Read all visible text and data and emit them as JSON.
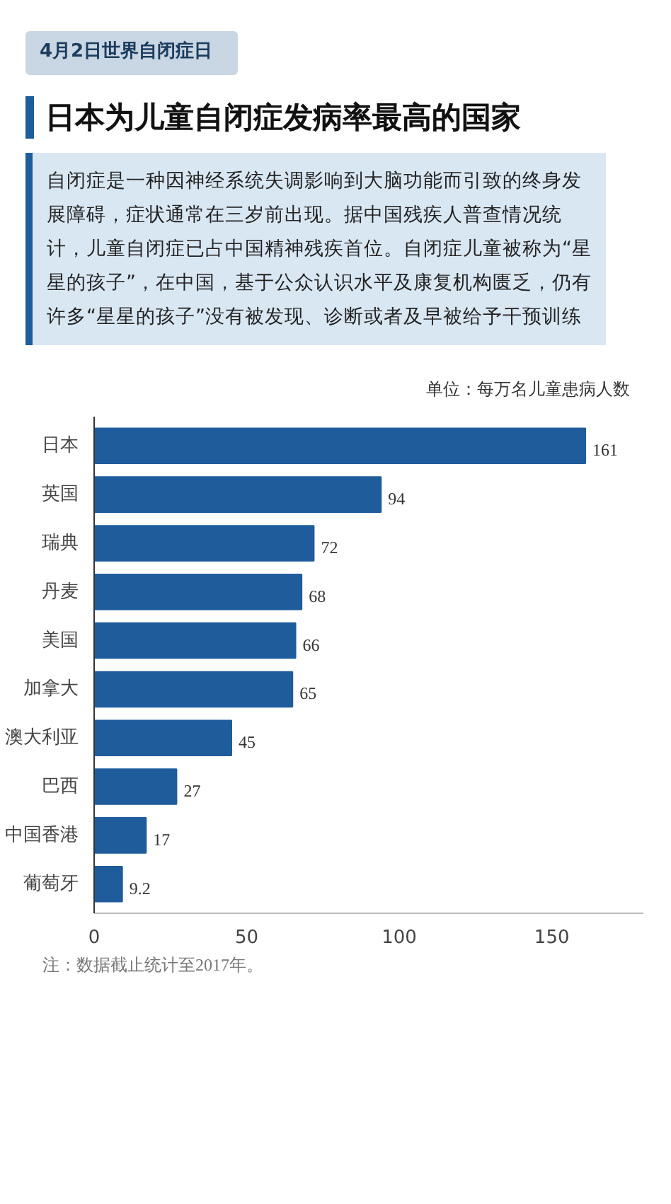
{
  "chart_data": {
    "type": "bar",
    "orientation": "horizontal",
    "title": "日本为儿童自闭症发病率最高的国家",
    "subtitle": "自闭症是一种因神经系统失调影响到大脑功能而引致的终身发展障碍，症状通常在三岁前出现。据中国残疾人普查情况统计，儿童自闭症已占中国精神残疾首位。自闭症儿童被称为“星星的孩子”，在中国，基于公众认识水平及康复机构匮乏，仍有许多“星星的孩子”没有被发现、诊断或者及早被给予干预训练",
    "annotations": [
      "4月2日世界自闭症日",
      "单位：每万名儿童患病人数",
      "注：数据截止统计至2017年。"
    ],
    "categories": [
      "日本",
      "英国",
      "瑞典",
      "丹麦",
      "美国",
      "加拿大",
      "澳大利亚",
      "巴西",
      "中国香港",
      "葡萄牙"
    ],
    "values": [
      161,
      94,
      72,
      68,
      66,
      65,
      45,
      27,
      17,
      9.2
    ],
    "color": "#1f5c9c",
    "data_labels": true,
    "xlim": [
      0,
      180
    ],
    "xticks": [
      0,
      50,
      100,
      150
    ],
    "grid": false
  }
}
